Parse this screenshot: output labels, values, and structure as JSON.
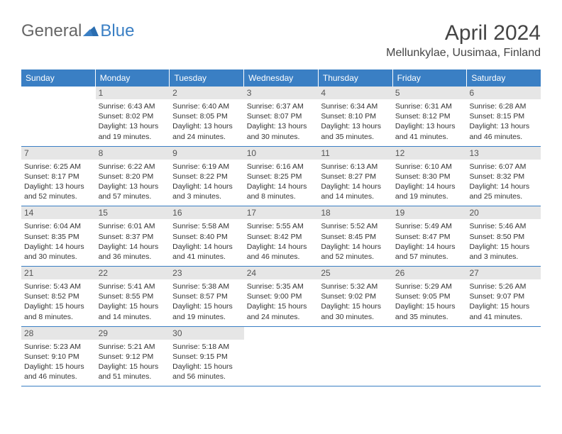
{
  "logo": {
    "text1": "General",
    "text2": "Blue"
  },
  "title": "April 2024",
  "location": "Mellunkylae, Uusimaa, Finland",
  "weekdays": [
    "Sunday",
    "Monday",
    "Tuesday",
    "Wednesday",
    "Thursday",
    "Friday",
    "Saturday"
  ],
  "colors": {
    "header_bg": "#3a7fc4",
    "header_text": "#ffffff",
    "daynum_bg": "#e6e6e6",
    "text": "#333333",
    "border": "#3a7fc4"
  },
  "weeks": [
    [
      {
        "n": "",
        "sunrise": "",
        "sunset": "",
        "daylight": ""
      },
      {
        "n": "1",
        "sunrise": "Sunrise: 6:43 AM",
        "sunset": "Sunset: 8:02 PM",
        "daylight": "Daylight: 13 hours and 19 minutes."
      },
      {
        "n": "2",
        "sunrise": "Sunrise: 6:40 AM",
        "sunset": "Sunset: 8:05 PM",
        "daylight": "Daylight: 13 hours and 24 minutes."
      },
      {
        "n": "3",
        "sunrise": "Sunrise: 6:37 AM",
        "sunset": "Sunset: 8:07 PM",
        "daylight": "Daylight: 13 hours and 30 minutes."
      },
      {
        "n": "4",
        "sunrise": "Sunrise: 6:34 AM",
        "sunset": "Sunset: 8:10 PM",
        "daylight": "Daylight: 13 hours and 35 minutes."
      },
      {
        "n": "5",
        "sunrise": "Sunrise: 6:31 AM",
        "sunset": "Sunset: 8:12 PM",
        "daylight": "Daylight: 13 hours and 41 minutes."
      },
      {
        "n": "6",
        "sunrise": "Sunrise: 6:28 AM",
        "sunset": "Sunset: 8:15 PM",
        "daylight": "Daylight: 13 hours and 46 minutes."
      }
    ],
    [
      {
        "n": "7",
        "sunrise": "Sunrise: 6:25 AM",
        "sunset": "Sunset: 8:17 PM",
        "daylight": "Daylight: 13 hours and 52 minutes."
      },
      {
        "n": "8",
        "sunrise": "Sunrise: 6:22 AM",
        "sunset": "Sunset: 8:20 PM",
        "daylight": "Daylight: 13 hours and 57 minutes."
      },
      {
        "n": "9",
        "sunrise": "Sunrise: 6:19 AM",
        "sunset": "Sunset: 8:22 PM",
        "daylight": "Daylight: 14 hours and 3 minutes."
      },
      {
        "n": "10",
        "sunrise": "Sunrise: 6:16 AM",
        "sunset": "Sunset: 8:25 PM",
        "daylight": "Daylight: 14 hours and 8 minutes."
      },
      {
        "n": "11",
        "sunrise": "Sunrise: 6:13 AM",
        "sunset": "Sunset: 8:27 PM",
        "daylight": "Daylight: 14 hours and 14 minutes."
      },
      {
        "n": "12",
        "sunrise": "Sunrise: 6:10 AM",
        "sunset": "Sunset: 8:30 PM",
        "daylight": "Daylight: 14 hours and 19 minutes."
      },
      {
        "n": "13",
        "sunrise": "Sunrise: 6:07 AM",
        "sunset": "Sunset: 8:32 PM",
        "daylight": "Daylight: 14 hours and 25 minutes."
      }
    ],
    [
      {
        "n": "14",
        "sunrise": "Sunrise: 6:04 AM",
        "sunset": "Sunset: 8:35 PM",
        "daylight": "Daylight: 14 hours and 30 minutes."
      },
      {
        "n": "15",
        "sunrise": "Sunrise: 6:01 AM",
        "sunset": "Sunset: 8:37 PM",
        "daylight": "Daylight: 14 hours and 36 minutes."
      },
      {
        "n": "16",
        "sunrise": "Sunrise: 5:58 AM",
        "sunset": "Sunset: 8:40 PM",
        "daylight": "Daylight: 14 hours and 41 minutes."
      },
      {
        "n": "17",
        "sunrise": "Sunrise: 5:55 AM",
        "sunset": "Sunset: 8:42 PM",
        "daylight": "Daylight: 14 hours and 46 minutes."
      },
      {
        "n": "18",
        "sunrise": "Sunrise: 5:52 AM",
        "sunset": "Sunset: 8:45 PM",
        "daylight": "Daylight: 14 hours and 52 minutes."
      },
      {
        "n": "19",
        "sunrise": "Sunrise: 5:49 AM",
        "sunset": "Sunset: 8:47 PM",
        "daylight": "Daylight: 14 hours and 57 minutes."
      },
      {
        "n": "20",
        "sunrise": "Sunrise: 5:46 AM",
        "sunset": "Sunset: 8:50 PM",
        "daylight": "Daylight: 15 hours and 3 minutes."
      }
    ],
    [
      {
        "n": "21",
        "sunrise": "Sunrise: 5:43 AM",
        "sunset": "Sunset: 8:52 PM",
        "daylight": "Daylight: 15 hours and 8 minutes."
      },
      {
        "n": "22",
        "sunrise": "Sunrise: 5:41 AM",
        "sunset": "Sunset: 8:55 PM",
        "daylight": "Daylight: 15 hours and 14 minutes."
      },
      {
        "n": "23",
        "sunrise": "Sunrise: 5:38 AM",
        "sunset": "Sunset: 8:57 PM",
        "daylight": "Daylight: 15 hours and 19 minutes."
      },
      {
        "n": "24",
        "sunrise": "Sunrise: 5:35 AM",
        "sunset": "Sunset: 9:00 PM",
        "daylight": "Daylight: 15 hours and 24 minutes."
      },
      {
        "n": "25",
        "sunrise": "Sunrise: 5:32 AM",
        "sunset": "Sunset: 9:02 PM",
        "daylight": "Daylight: 15 hours and 30 minutes."
      },
      {
        "n": "26",
        "sunrise": "Sunrise: 5:29 AM",
        "sunset": "Sunset: 9:05 PM",
        "daylight": "Daylight: 15 hours and 35 minutes."
      },
      {
        "n": "27",
        "sunrise": "Sunrise: 5:26 AM",
        "sunset": "Sunset: 9:07 PM",
        "daylight": "Daylight: 15 hours and 41 minutes."
      }
    ],
    [
      {
        "n": "28",
        "sunrise": "Sunrise: 5:23 AM",
        "sunset": "Sunset: 9:10 PM",
        "daylight": "Daylight: 15 hours and 46 minutes."
      },
      {
        "n": "29",
        "sunrise": "Sunrise: 5:21 AM",
        "sunset": "Sunset: 9:12 PM",
        "daylight": "Daylight: 15 hours and 51 minutes."
      },
      {
        "n": "30",
        "sunrise": "Sunrise: 5:18 AM",
        "sunset": "Sunset: 9:15 PM",
        "daylight": "Daylight: 15 hours and 56 minutes."
      },
      {
        "n": "",
        "sunrise": "",
        "sunset": "",
        "daylight": ""
      },
      {
        "n": "",
        "sunrise": "",
        "sunset": "",
        "daylight": ""
      },
      {
        "n": "",
        "sunrise": "",
        "sunset": "",
        "daylight": ""
      },
      {
        "n": "",
        "sunrise": "",
        "sunset": "",
        "daylight": ""
      }
    ]
  ]
}
